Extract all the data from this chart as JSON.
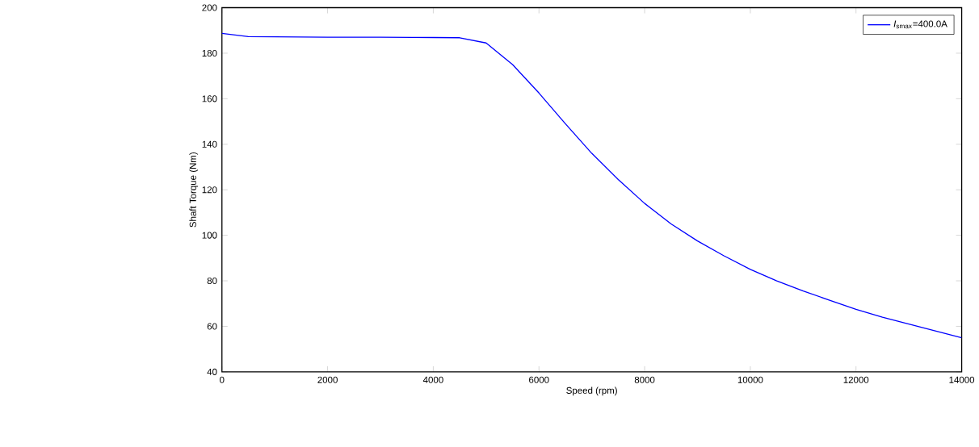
{
  "chart_data": {
    "type": "line",
    "xlabel": "Speed  (rpm)",
    "ylabel": "Shaft Torque  (Nm)",
    "xlim": [
      0,
      14000
    ],
    "xticks": [
      0,
      2000,
      4000,
      6000,
      8000,
      10000,
      12000,
      14000
    ],
    "ylim": [
      40,
      200
    ],
    "yticks": [
      40,
      60,
      80,
      100,
      120,
      140,
      160,
      180,
      200
    ],
    "legend": "top right",
    "grid": false,
    "series": [
      {
        "name": "*I*$_{smax}$=400.0A",
        "color": "#0000ff",
        "x": [
          0,
          500,
          1000,
          2000,
          3000,
          4000,
          4500,
          5000,
          5500,
          6000,
          6500,
          7000,
          7500,
          8000,
          8500,
          9000,
          9500,
          10000,
          10500,
          11000,
          11500,
          12000,
          12500,
          13000,
          13500,
          14000
        ],
        "values": [
          188.7,
          187.3,
          187.2,
          187,
          187,
          186.9,
          186.8,
          184.5,
          175,
          162.5,
          149,
          136,
          124.5,
          114,
          105,
          97.5,
          91,
          85,
          80,
          75.5,
          71.5,
          67.5,
          64,
          61,
          58,
          55
        ]
      }
    ]
  }
}
